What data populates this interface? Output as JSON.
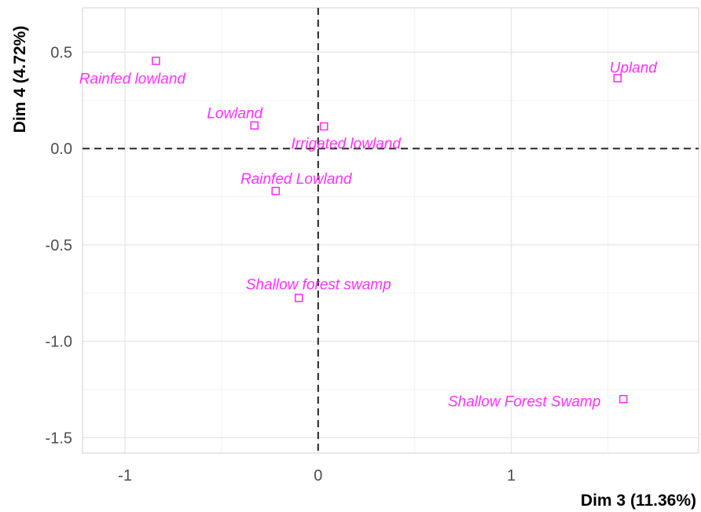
{
  "chart_data": {
    "type": "scatter",
    "xlabel": "Dim 3 (11.36%)",
    "ylabel": "Dim 4 (4.72%)",
    "xlim": [
      -1.22,
      1.97
    ],
    "ylim": [
      -1.58,
      0.73
    ],
    "xticks": [
      -1,
      0,
      1
    ],
    "xtick_labels": [
      "-1",
      "0",
      "1"
    ],
    "yticks": [
      -1.5,
      -1.0,
      -0.5,
      0.0,
      0.5
    ],
    "ytick_labels": [
      "-1.5",
      "-1.0",
      "-0.5",
      "0.0",
      "0.5"
    ],
    "grid": true,
    "reference_lines": {
      "x": 0,
      "y": 0,
      "style": "dashed"
    },
    "point_color": "#ff33ff",
    "points": [
      {
        "label": "Rainfed lowland",
        "x": -0.84,
        "y": 0.455
      },
      {
        "label": "Upland",
        "x": 1.55,
        "y": 0.365
      },
      {
        "label": "Lowland",
        "x": -0.33,
        "y": 0.12
      },
      {
        "label": "Irrigated lowland",
        "x": 0.03,
        "y": 0.115
      },
      {
        "label": "Rainfed Lowland",
        "x": -0.22,
        "y": -0.22
      },
      {
        "label": "Shallow forest swamp",
        "x": -0.1,
        "y": -0.775
      },
      {
        "label": "Shallow Forest Swamp",
        "x": 1.58,
        "y": -1.3
      }
    ]
  }
}
